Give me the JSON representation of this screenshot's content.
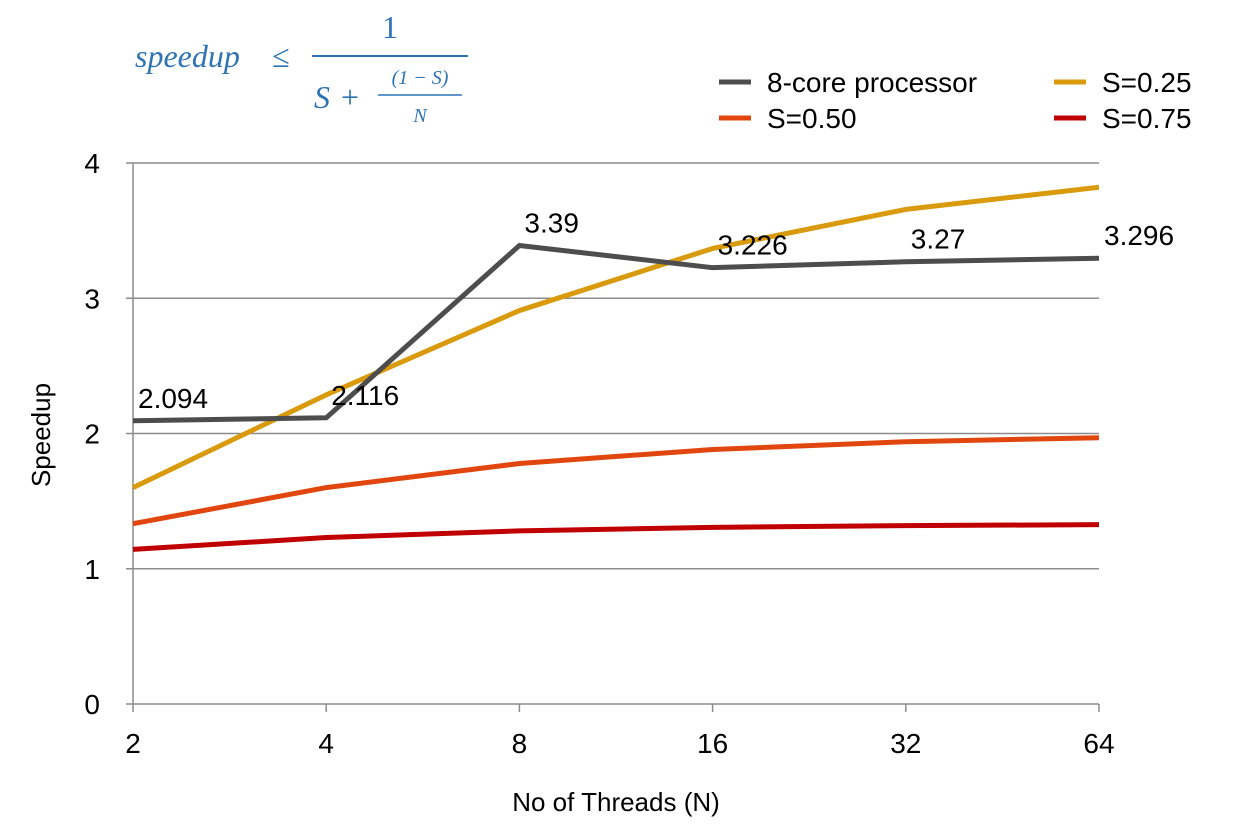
{
  "formula": {
    "lhs": "speedup",
    "leq": "≤",
    "numerator": "1",
    "den_s": "S",
    "plus": "+",
    "inner_numerator": "(1 − S)",
    "inner_denominator": "N"
  },
  "chart_data": {
    "type": "line",
    "categories": [
      "2",
      "4",
      "8",
      "16",
      "32",
      "64"
    ],
    "xlabel": "No of Threads (N)",
    "ylabel": "Speedup",
    "ylim": [
      0,
      4
    ],
    "yticks": [
      "0",
      "1",
      "2",
      "3",
      "4"
    ],
    "grid": true,
    "legend_position": "top-right",
    "series": [
      {
        "name": "8-core processor",
        "color": "#4d4d4d",
        "values": [
          2.094,
          2.116,
          3.39,
          3.226,
          3.27,
          3.296
        ],
        "labels": [
          "2.094",
          "2.116",
          "3.39",
          "3.226",
          "3.27",
          "3.296"
        ]
      },
      {
        "name": "S=0.25",
        "color": "#d99a0b",
        "values": [
          1.6,
          2.286,
          2.909,
          3.368,
          3.657,
          3.821
        ]
      },
      {
        "name": "S=0.50",
        "color": "#e0460e",
        "values": [
          1.333,
          1.6,
          1.778,
          1.882,
          1.939,
          1.969
        ]
      },
      {
        "name": "S=0.75",
        "color": "#c00000",
        "values": [
          1.143,
          1.231,
          1.28,
          1.306,
          1.319,
          1.326
        ]
      }
    ]
  }
}
